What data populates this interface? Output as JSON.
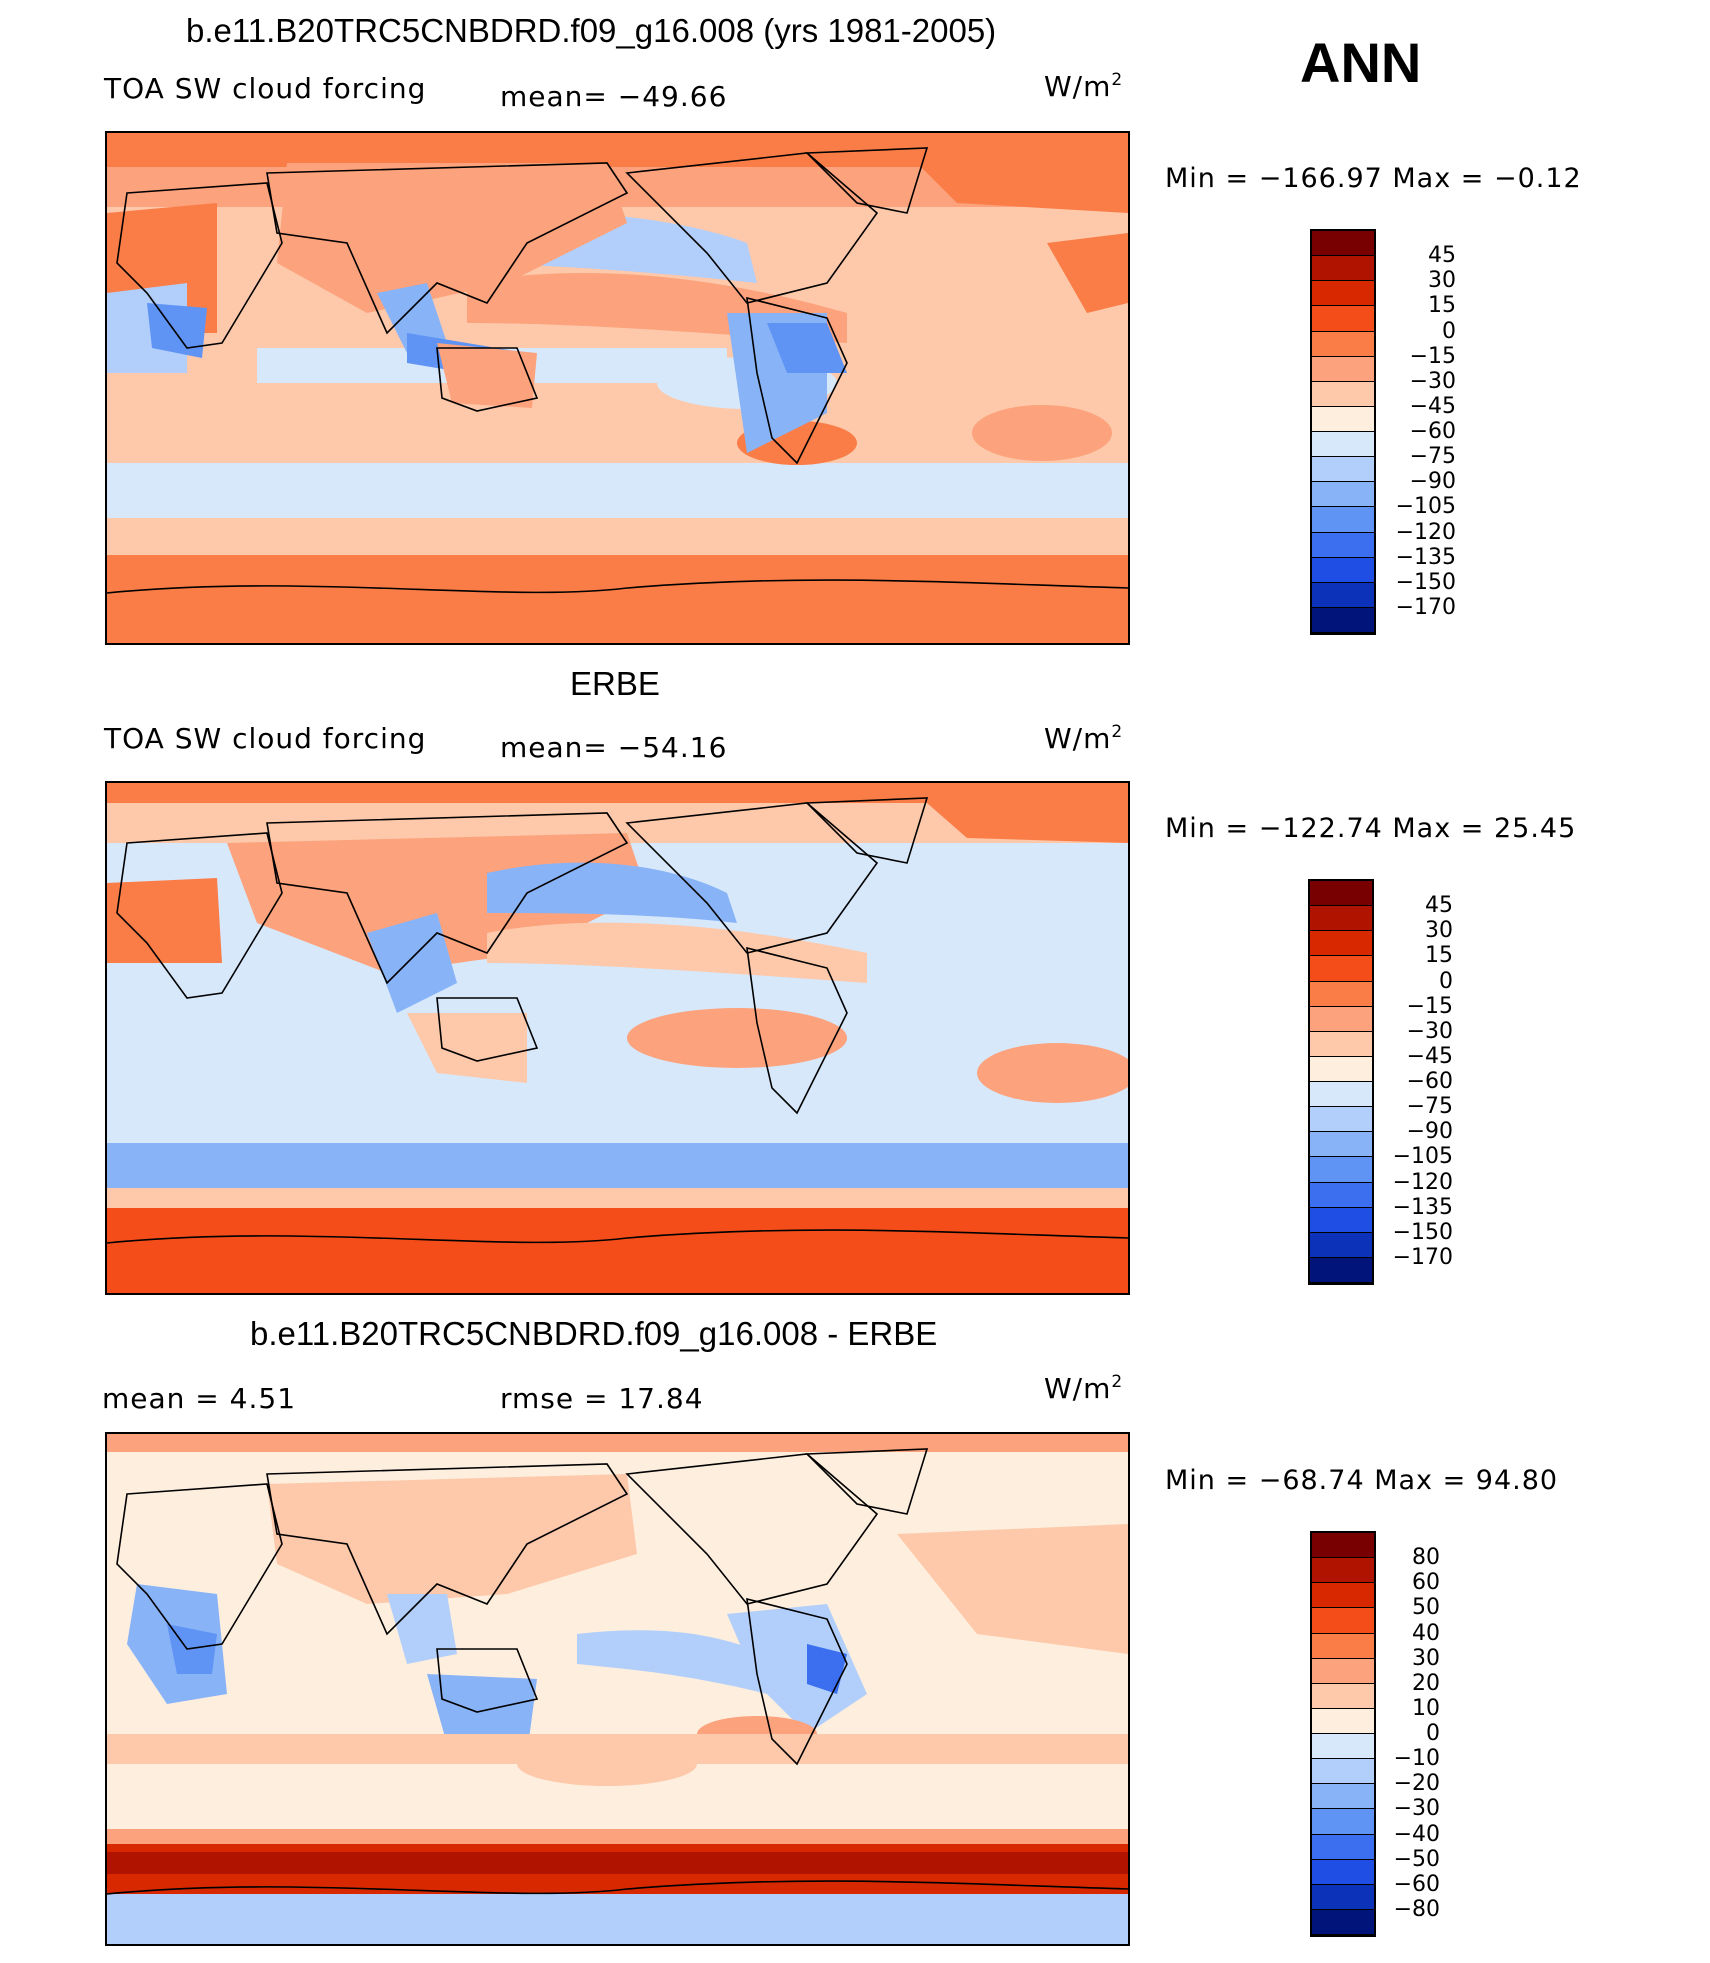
{
  "season": "ANN",
  "colors": {
    "main_scale": [
      "#780000",
      "#b01400",
      "#d82800",
      "#f54d1a",
      "#fa7d48",
      "#fca27c",
      "#fdc9aa",
      "#feeede",
      "#d7e8fb",
      "#b1cffa",
      "#89b3f7",
      "#5f93f4",
      "#3c6ff0",
      "#1e4ee4",
      "#0b32b8",
      "#00147a"
    ],
    "diff_scale": [
      "#780000",
      "#b01400",
      "#d82800",
      "#f54d1a",
      "#fa7d48",
      "#fca27c",
      "#fdc9aa",
      "#feeede",
      "#d7e8fb",
      "#b1cffa",
      "#89b3f7",
      "#5f93f4",
      "#3c6ff0",
      "#1e4ee4",
      "#0b32b8",
      "#00147a"
    ]
  },
  "panels": [
    {
      "title": "b.e11.B20TRC5CNBDRD.f09_g16.008 (yrs 1981-2005)",
      "left_label": "TOA SW cloud forcing",
      "center_label": "mean= −49.66",
      "units": "W/m",
      "units_exp": "2",
      "min_max": "Min  =  −166.97  Max  =    −0.12",
      "colorbar_labels": [
        "45",
        "30",
        "15",
        "0",
        "−15",
        "−30",
        "−45",
        "−60",
        "−75",
        "−90",
        "−105",
        "−120",
        "−135",
        "−150",
        "−170"
      ]
    },
    {
      "title": "ERBE",
      "left_label": "TOA SW cloud forcing",
      "center_label": "mean= −54.16",
      "units": "W/m",
      "units_exp": "2",
      "min_max": "Min  =  −122.74  Max  =    25.45",
      "colorbar_labels": [
        "45",
        "30",
        "15",
        "0",
        "−15",
        "−30",
        "−45",
        "−60",
        "−75",
        "−90",
        "−105",
        "−120",
        "−135",
        "−150",
        "−170"
      ]
    },
    {
      "title": "b.e11.B20TRC5CNBDRD.f09_g16.008 - ERBE",
      "left_label": "mean =     4.51",
      "center_label": "rmse =    17.84",
      "units": "W/m",
      "units_exp": "2",
      "min_max": "Min  =  −68.74  Max  =    94.80",
      "colorbar_labels": [
        "80",
        "60",
        "50",
        "40",
        "30",
        "20",
        "10",
        "0",
        "−10",
        "−20",
        "−30",
        "−40",
        "−50",
        "−60",
        "−80"
      ]
    }
  ]
}
